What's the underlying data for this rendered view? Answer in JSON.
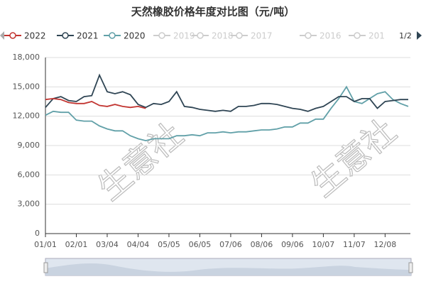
{
  "chart_data": {
    "type": "line",
    "title": "天然橡胶价格年度对比图（元/吨）",
    "watermark": "生意社",
    "categories": [
      "01/01",
      null,
      null,
      null,
      "02/01",
      null,
      null,
      null,
      "03/04",
      null,
      null,
      null,
      "04/04",
      null,
      null,
      null,
      "05/05",
      null,
      null,
      null,
      "06/05",
      null,
      null,
      null,
      "07/06",
      null,
      null,
      null,
      "08/06",
      null,
      null,
      null,
      "09/06",
      null,
      null,
      null,
      "10/07",
      null,
      null,
      null,
      "11/07",
      null,
      null,
      null,
      "12/08",
      null,
      null,
      null
    ],
    "series": [
      {
        "name": "2022",
        "color": "#c23531",
        "values": [
          13700,
          13800,
          13700,
          13400,
          13300,
          13300,
          13500,
          13100,
          13000,
          13200,
          13000,
          12900,
          13000,
          12800,
          null,
          null,
          null,
          null,
          null,
          null,
          null,
          null,
          null,
          null,
          null,
          null,
          null,
          null,
          null,
          null,
          null,
          null,
          null,
          null,
          null,
          null,
          null,
          null,
          null,
          null,
          null,
          null,
          null,
          null,
          null,
          null,
          null,
          null
        ]
      },
      {
        "name": "2021",
        "color": "#2f4554",
        "values": [
          12900,
          13800,
          14000,
          13600,
          13500,
          14000,
          14100,
          16200,
          14500,
          14300,
          14500,
          14200,
          13200,
          12900,
          13300,
          13200,
          13500,
          14500,
          13000,
          12900,
          12700,
          12600,
          12500,
          12600,
          12500,
          13000,
          13000,
          13100,
          13300,
          13300,
          13200,
          13000,
          12800,
          12700,
          12500,
          12800,
          13000,
          13500,
          14000,
          14000,
          13500,
          13800,
          13800,
          12800,
          13500,
          13600,
          13700,
          13700
        ]
      },
      {
        "name": "2020",
        "color": "#61a0a8",
        "values": [
          12100,
          12500,
          12400,
          12400,
          11600,
          11500,
          11500,
          11000,
          10700,
          10500,
          10500,
          10000,
          9700,
          9500,
          9700,
          9700,
          9700,
          10000,
          10000,
          10100,
          10000,
          10300,
          10300,
          10400,
          10300,
          10400,
          10400,
          10500,
          10600,
          10600,
          10700,
          10900,
          10900,
          11300,
          11300,
          11700,
          11700,
          12800,
          13800,
          15000,
          13500,
          13300,
          13800,
          14300,
          14500,
          13700,
          13300,
          13000
        ]
      }
    ],
    "legend_hidden": [
      "2019",
      "2018",
      "2017",
      "2016",
      "201"
    ],
    "legend_page": "1/2",
    "ylim": [
      0,
      18000
    ],
    "yticks": [
      0,
      {
        "value": 3000,
        "label": "3,000"
      },
      {
        "value": 6000,
        "label": "6,000"
      },
      {
        "value": 9000,
        "label": "9,000"
      },
      {
        "value": 12000,
        "label": "12,000"
      },
      {
        "value": 15000,
        "label": "15,000"
      },
      {
        "value": 18000,
        "label": "18,000"
      }
    ],
    "grid": true
  }
}
